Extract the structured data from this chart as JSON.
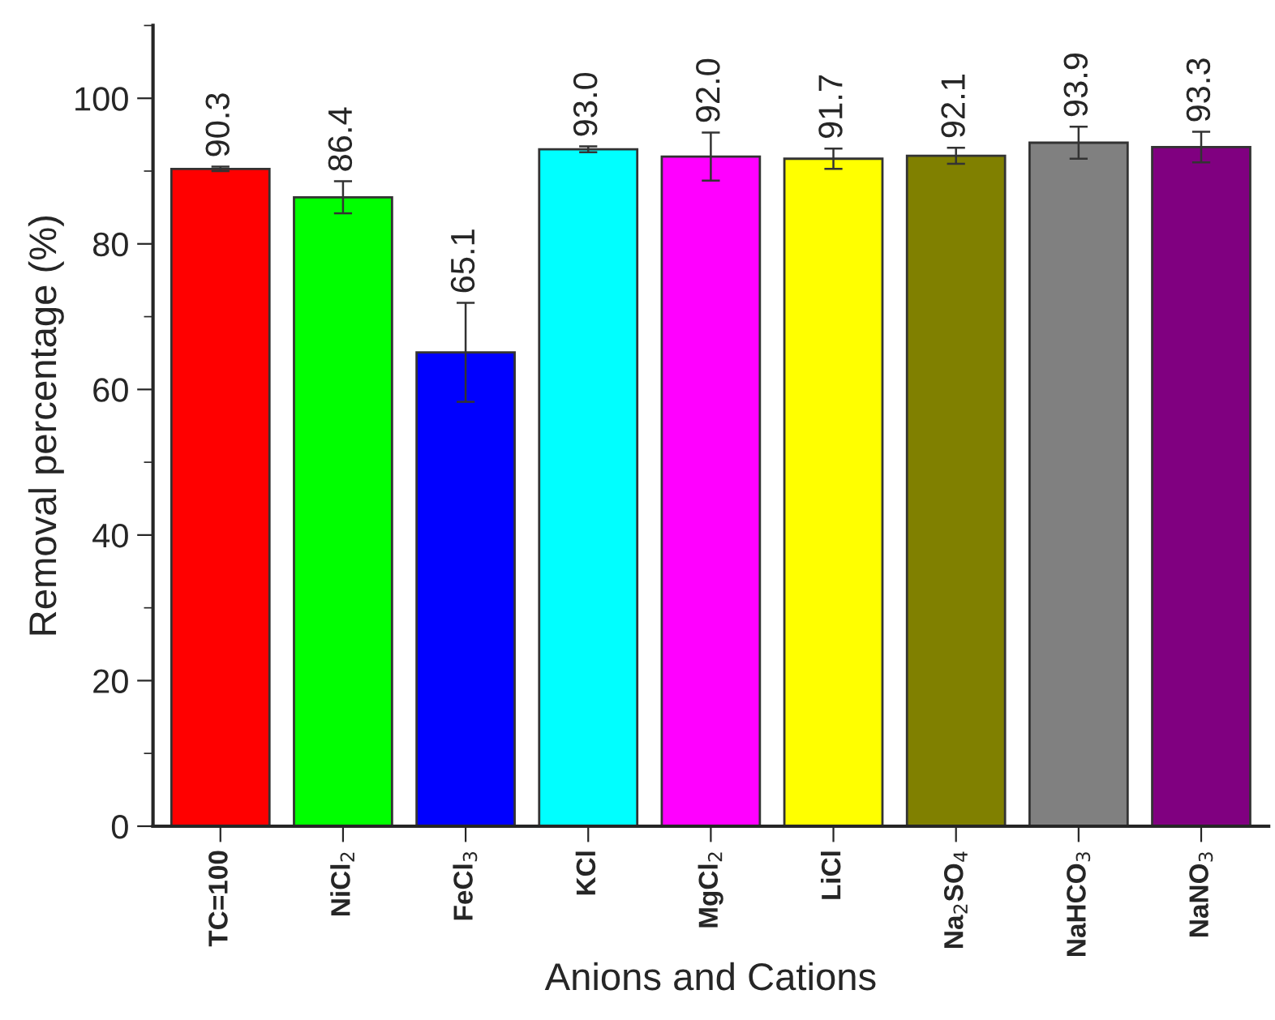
{
  "chart_data": {
    "type": "bar",
    "xlabel": "Anions and Cations",
    "ylabel": "Removal percentage (%)",
    "categories": [
      "TC=100",
      "NiCl$_{2}$",
      "FeCl$_{3}$",
      "KCl",
      "MgCl$_{2}$",
      "LiCl",
      "Na$_{2}$SO$_{4}$",
      "NaHCO$_{3}$",
      "NaNO$_{3}$"
    ],
    "values": [
      90.3,
      86.4,
      65.1,
      93.0,
      92.0,
      91.7,
      92.1,
      93.9,
      93.3
    ],
    "errors": [
      0.3,
      2.2,
      6.8,
      0.4,
      3.3,
      1.4,
      1.1,
      2.2,
      2.1
    ],
    "colors": [
      "#ff0000",
      "#00ff00",
      "#0000ff",
      "#00ffff",
      "#ff00ff",
      "#ffff00",
      "#808000",
      "#808080",
      "#800080"
    ],
    "value_labels": [
      "90.3",
      "86.4",
      "65.1",
      "93.0",
      "92.0",
      "91.7",
      "92.1",
      "93.9",
      "93.3"
    ],
    "ylim": [
      0,
      110
    ],
    "yticks": [
      0,
      {
        "value": 10,
        "label": null
      },
      20,
      {
        "value": 30,
        "label": null
      },
      40,
      {
        "value": 50,
        "label": null
      },
      60,
      {
        "value": 70,
        "label": null
      },
      80,
      {
        "value": 90,
        "label": null
      },
      100,
      {
        "value": 110,
        "label": null
      }
    ],
    "grid": false,
    "legend": false
  }
}
